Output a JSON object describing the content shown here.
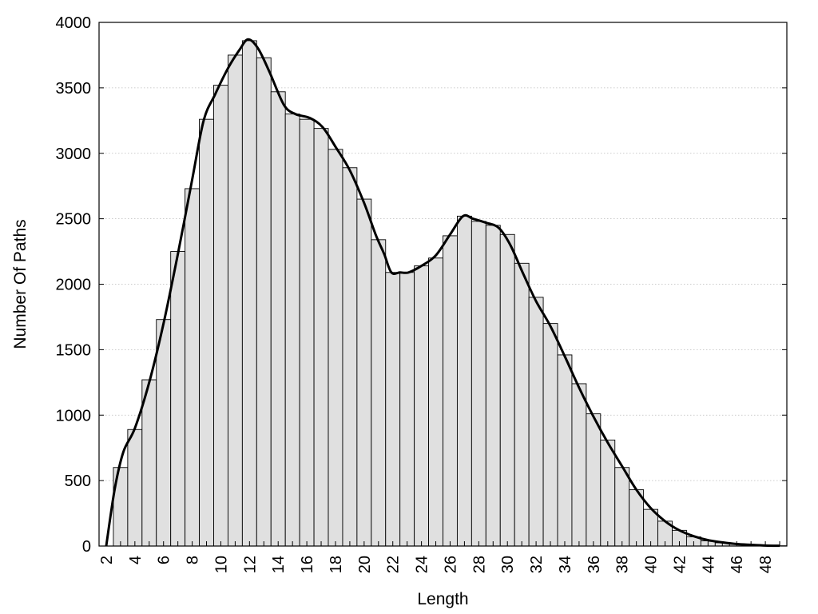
{
  "chart_data": {
    "type": "bar",
    "title": "",
    "xlabel": "Length",
    "ylabel": "Number Of Paths",
    "ylim": [
      0,
      4000
    ],
    "xlim": [
      1.5,
      49.5
    ],
    "yticks": [
      0,
      500,
      1000,
      1500,
      2000,
      2500,
      3000,
      3500,
      4000
    ],
    "xticks": [
      2,
      4,
      6,
      8,
      10,
      12,
      14,
      16,
      18,
      20,
      22,
      24,
      26,
      28,
      30,
      32,
      34,
      36,
      38,
      40,
      42,
      44,
      46,
      48
    ],
    "grid": "horizontal dotted",
    "legend": "none",
    "colors": {
      "bar_fill": "#e0e0e0",
      "bar_stroke": "#000000",
      "curve": "#000000",
      "grid": "#bbbbbb"
    },
    "categories": [
      2,
      3,
      4,
      5,
      6,
      7,
      8,
      9,
      10,
      11,
      12,
      13,
      14,
      15,
      16,
      17,
      18,
      19,
      20,
      21,
      22,
      23,
      24,
      25,
      26,
      27,
      28,
      29,
      30,
      31,
      32,
      33,
      34,
      35,
      36,
      37,
      38,
      39,
      40,
      41,
      42,
      43,
      44,
      45,
      46,
      47,
      48,
      49
    ],
    "values": [
      0,
      600,
      890,
      1270,
      1730,
      2250,
      2730,
      3260,
      3520,
      3750,
      3860,
      3730,
      3470,
      3300,
      3260,
      3190,
      3030,
      2890,
      2650,
      2340,
      2090,
      2090,
      2140,
      2200,
      2370,
      2520,
      2480,
      2450,
      2380,
      2160,
      1900,
      1700,
      1460,
      1240,
      1010,
      810,
      600,
      430,
      280,
      190,
      120,
      70,
      40,
      25,
      15,
      8,
      5,
      2
    ],
    "smooth_curve": [
      [
        2,
        0
      ],
      [
        2.6,
        440
      ],
      [
        3.2,
        720
      ],
      [
        4,
        900
      ],
      [
        5,
        1250
      ],
      [
        6,
        1700
      ],
      [
        7,
        2230
      ],
      [
        8,
        2800
      ],
      [
        8.8,
        3250
      ],
      [
        9.6,
        3450
      ],
      [
        10.5,
        3650
      ],
      [
        11.3,
        3790
      ],
      [
        11.9,
        3870
      ],
      [
        12.6,
        3800
      ],
      [
        13.4,
        3620
      ],
      [
        14.4,
        3370
      ],
      [
        15.2,
        3300
      ],
      [
        16.2,
        3270
      ],
      [
        17.1,
        3200
      ],
      [
        18,
        3050
      ],
      [
        19,
        2870
      ],
      [
        20,
        2620
      ],
      [
        20.8,
        2380
      ],
      [
        21.4,
        2230
      ],
      [
        21.9,
        2090
      ],
      [
        22.5,
        2090
      ],
      [
        23.1,
        2090
      ],
      [
        24,
        2140
      ],
      [
        25,
        2220
      ],
      [
        26,
        2380
      ],
      [
        26.9,
        2520
      ],
      [
        27.6,
        2500
      ],
      [
        28.5,
        2470
      ],
      [
        29.4,
        2430
      ],
      [
        30.2,
        2300
      ],
      [
        31.1,
        2080
      ],
      [
        32,
        1870
      ],
      [
        33,
        1680
      ],
      [
        34,
        1450
      ],
      [
        35,
        1210
      ],
      [
        36,
        990
      ],
      [
        37,
        790
      ],
      [
        38,
        610
      ],
      [
        39,
        430
      ],
      [
        40,
        290
      ],
      [
        41,
        190
      ],
      [
        42,
        120
      ],
      [
        43,
        75
      ],
      [
        44,
        45
      ],
      [
        45,
        28
      ],
      [
        46,
        15
      ],
      [
        47,
        9
      ],
      [
        48,
        4
      ],
      [
        49,
        2
      ]
    ]
  }
}
